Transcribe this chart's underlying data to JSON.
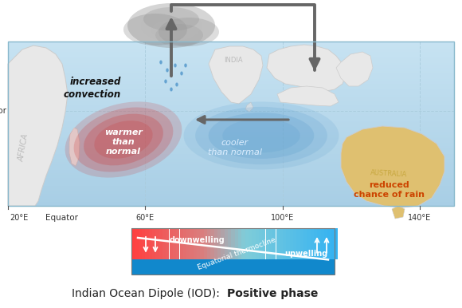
{
  "title_regular": "Indian Ocean Dipole (IOD):  ",
  "title_bold": "Positive phase",
  "bg_color": "#ffffff",
  "map_bg_light": "#c8e4f0",
  "map_bg_dark": "#a0cce0",
  "africa_color": "#e8e8e8",
  "australia_color": "#dfc070",
  "land_color": "#e8e8e8",
  "warm_color": "#cc3333",
  "cool_color": "#5599cc",
  "arrow_color": "#666666",
  "rain_color": "#5599cc",
  "label_equator_left": "Equator",
  "label_equator_bottom": "Equator",
  "label_20e": "20°E",
  "label_60e": "60°E",
  "label_100e": "100°E",
  "label_140e": "140°E",
  "label_africa": "AFRICA",
  "label_india": "INDIA",
  "label_australia": "AUSTRALIA",
  "label_warmer": "warmer\nthan\nnormal",
  "label_cooler": "cooler\nthan normal",
  "label_convection": "increased\nconvection",
  "label_rain": "reduced\nchance of rain",
  "label_downwelling": "downwelling",
  "label_upwelling": "upwelling",
  "label_thermocline": "Equatorial thermocline"
}
